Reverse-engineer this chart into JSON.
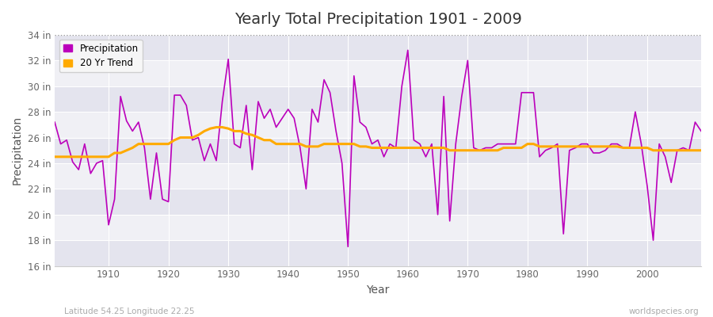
{
  "title": "Yearly Total Precipitation 1901 - 2009",
  "xlabel": "Year",
  "ylabel": "Precipitation",
  "subtitle_left": "Latitude 54.25 Longitude 22.25",
  "subtitle_right": "worldspecies.org",
  "ylim": [
    16,
    34
  ],
  "yticks": [
    16,
    18,
    20,
    22,
    24,
    26,
    28,
    30,
    32,
    34
  ],
  "ytick_labels": [
    "16 in",
    "18 in",
    "20 in",
    "22 in",
    "24 in",
    "26 in",
    "28 in",
    "30 in",
    "32 in",
    "34 in"
  ],
  "xlim": [
    1901,
    2009
  ],
  "xticks": [
    1910,
    1920,
    1930,
    1940,
    1950,
    1960,
    1970,
    1980,
    1990,
    2000
  ],
  "years": [
    1901,
    1902,
    1903,
    1904,
    1905,
    1906,
    1907,
    1908,
    1909,
    1910,
    1911,
    1912,
    1913,
    1914,
    1915,
    1916,
    1917,
    1918,
    1919,
    1920,
    1921,
    1922,
    1923,
    1924,
    1925,
    1926,
    1927,
    1928,
    1929,
    1930,
    1931,
    1932,
    1933,
    1934,
    1935,
    1936,
    1937,
    1938,
    1939,
    1940,
    1941,
    1942,
    1943,
    1944,
    1945,
    1946,
    1947,
    1948,
    1949,
    1950,
    1951,
    1952,
    1953,
    1954,
    1955,
    1956,
    1957,
    1958,
    1959,
    1960,
    1961,
    1962,
    1963,
    1964,
    1965,
    1966,
    1967,
    1968,
    1969,
    1970,
    1971,
    1972,
    1973,
    1974,
    1975,
    1976,
    1977,
    1978,
    1979,
    1980,
    1981,
    1982,
    1983,
    1984,
    1985,
    1986,
    1987,
    1988,
    1989,
    1990,
    1991,
    1992,
    1993,
    1994,
    1995,
    1996,
    1997,
    1998,
    1999,
    2000,
    2001,
    2002,
    2003,
    2004,
    2005,
    2006,
    2007,
    2008,
    2009
  ],
  "precipitation": [
    27.2,
    25.5,
    25.8,
    24.1,
    23.5,
    25.5,
    23.2,
    24.0,
    24.2,
    19.2,
    21.2,
    29.2,
    27.3,
    26.5,
    27.2,
    25.2,
    21.2,
    24.8,
    21.2,
    21.0,
    29.3,
    29.3,
    28.5,
    25.8,
    26.0,
    24.2,
    25.5,
    24.2,
    28.8,
    32.1,
    25.5,
    25.2,
    28.5,
    23.5,
    28.8,
    27.5,
    28.2,
    26.8,
    27.5,
    28.2,
    27.5,
    25.2,
    22.0,
    28.2,
    27.2,
    30.5,
    29.5,
    26.5,
    24.0,
    17.5,
    30.8,
    27.2,
    26.8,
    25.5,
    25.8,
    24.5,
    25.5,
    25.2,
    30.0,
    32.8,
    25.8,
    25.5,
    24.5,
    25.5,
    20.0,
    29.2,
    19.5,
    25.5,
    29.2,
    32.0,
    25.2,
    25.0,
    25.2,
    25.2,
    25.5,
    25.5,
    25.5,
    25.5,
    29.5,
    29.5,
    29.5,
    24.5,
    25.0,
    25.2,
    25.5,
    18.5,
    25.0,
    25.2,
    25.5,
    25.5,
    24.8,
    24.8,
    25.0,
    25.5,
    25.5,
    25.2,
    25.2,
    28.0,
    25.5,
    22.2,
    18.0,
    25.5,
    24.5,
    22.5,
    25.0,
    25.2,
    25.0,
    27.2,
    26.5
  ],
  "trend": [
    24.5,
    24.5,
    24.5,
    24.5,
    24.5,
    24.5,
    24.5,
    24.5,
    24.5,
    24.5,
    24.8,
    24.8,
    25.0,
    25.2,
    25.5,
    25.5,
    25.5,
    25.5,
    25.5,
    25.5,
    25.8,
    26.0,
    26.0,
    26.0,
    26.2,
    26.5,
    26.7,
    26.8,
    26.8,
    26.7,
    26.5,
    26.5,
    26.3,
    26.2,
    26.0,
    25.8,
    25.8,
    25.5,
    25.5,
    25.5,
    25.5,
    25.5,
    25.3,
    25.3,
    25.3,
    25.5,
    25.5,
    25.5,
    25.5,
    25.5,
    25.5,
    25.3,
    25.3,
    25.2,
    25.2,
    25.2,
    25.2,
    25.2,
    25.2,
    25.2,
    25.2,
    25.2,
    25.2,
    25.2,
    25.2,
    25.2,
    25.0,
    25.0,
    25.0,
    25.0,
    25.0,
    25.0,
    25.0,
    25.0,
    25.0,
    25.2,
    25.2,
    25.2,
    25.2,
    25.5,
    25.5,
    25.3,
    25.3,
    25.3,
    25.3,
    25.3,
    25.3,
    25.3,
    25.3,
    25.3,
    25.3,
    25.3,
    25.3,
    25.3,
    25.3,
    25.2,
    25.2,
    25.2,
    25.2,
    25.2,
    25.0,
    25.0,
    25.0,
    25.0,
    25.0,
    25.0,
    25.0,
    25.0,
    25.0
  ],
  "precip_color": "#bb00bb",
  "trend_color": "#ffaa00",
  "bg_color": "#ffffff",
  "plot_bg_color": "#f0f0f5",
  "stripe_color": "#e4e4ee",
  "grid_color": "#ffffff",
  "top_dotted_color": "#999999",
  "legend_bg": "#f8f8f8"
}
